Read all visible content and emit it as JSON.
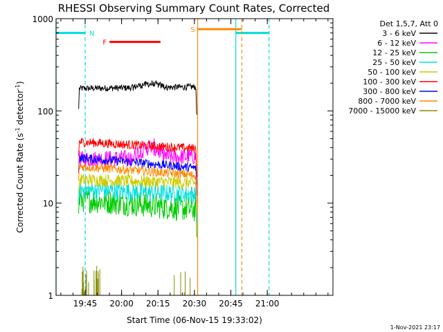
{
  "chart_data": {
    "type": "line",
    "title": "RHESSI Observing Summary Count Rates, Corrected",
    "xlabel": "Start Time (06-Nov-15 19:33:02)",
    "ylabel_main": "Corrected Count Rate (s",
    "ylabel_sup1": "-1",
    "ylabel_mid": " detector",
    "ylabel_sup2": "-1",
    "ylabel_end": ")",
    "x_range_minutes": [
      0,
      114
    ],
    "ylim": [
      1,
      1000
    ],
    "y_scale": "log",
    "x_ticks": [
      {
        "label": "19:45",
        "t": 11.97
      },
      {
        "label": "20:00",
        "t": 26.97
      },
      {
        "label": "20:15",
        "t": 41.97
      },
      {
        "label": "20:30",
        "t": 56.97
      },
      {
        "label": "20:45",
        "t": 71.97
      },
      {
        "label": "21:00",
        "t": 86.97
      }
    ],
    "y_ticks": [
      {
        "label": "1",
        "v": 1
      },
      {
        "label": "10",
        "v": 10
      },
      {
        "label": "100",
        "v": 100
      },
      {
        "label": "1000",
        "v": 1000
      }
    ],
    "legend_header": "Det 1,5,7, Att 0",
    "legend_position": "right",
    "series": [
      {
        "name": "3 - 6 keV",
        "color": "#000000",
        "base": 175,
        "end": 182,
        "noise": 0.035,
        "bump": 0.1
      },
      {
        "name": "6 - 12 keV",
        "color": "#ff00ff",
        "base": 30,
        "end": 32,
        "noise": 0.09,
        "bump": 0.3
      },
      {
        "name": "12 - 25 keV",
        "color": "#00cc00",
        "base": 11,
        "end": 8.5,
        "noise": 0.14,
        "bump": 0
      },
      {
        "name": "25 - 50 keV",
        "color": "#00dddd",
        "base": 14,
        "end": 12.5,
        "noise": 0.1,
        "bump": 0
      },
      {
        "name": "50 - 100 keV",
        "color": "#cccc00",
        "base": 18,
        "end": 16.5,
        "noise": 0.07,
        "bump": 0
      },
      {
        "name": "100 - 300 keV",
        "color": "#ff0000",
        "base": 46,
        "end": 39,
        "noise": 0.05,
        "bump": 0
      },
      {
        "name": "300 - 800 keV",
        "color": "#0000ff",
        "base": 31,
        "end": 24,
        "noise": 0.05,
        "bump": 0
      },
      {
        "name": "800 - 7000 keV",
        "color": "#ff8800",
        "base": 25,
        "end": 20,
        "noise": 0.05,
        "bump": 0
      },
      {
        "name": "7000 - 15000 keV",
        "color": "#888800",
        "base": 0,
        "end": 0,
        "noise": 0,
        "bump": 0
      }
    ],
    "data_interval": {
      "t0": 9.3,
      "t1": 57.9
    },
    "annotations": [
      {
        "label": "N",
        "color": "#00dddd",
        "level": 700,
        "segments": [
          [
            0,
            12.0
          ],
          [
            74.0,
            87.7
          ]
        ],
        "lines_solid": [
          0,
          74.0
        ],
        "lines_dashed": [
          12.0,
          87.7
        ]
      },
      {
        "label": "F",
        "color": "#ff0000",
        "level": 560,
        "segments": [
          [
            22.0,
            43.0
          ]
        ]
      },
      {
        "label": "S",
        "color": "#ff8800",
        "level": 770,
        "segments": [
          [
            58.3,
            76.5
          ]
        ],
        "lines_solid": [
          58.3
        ],
        "lines_dashed": [
          76.5
        ]
      }
    ],
    "corner_stamp": "1-Nov-2021 23:17"
  }
}
